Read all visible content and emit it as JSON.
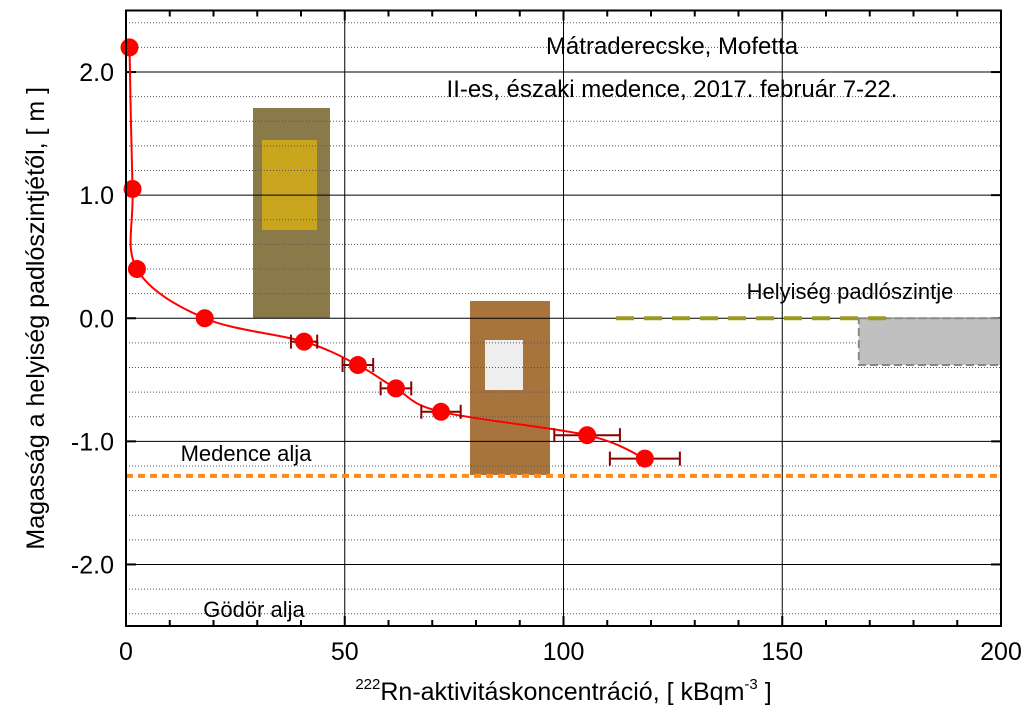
{
  "chart_data": {
    "type": "scatter",
    "title": "Mátraderecske, Mofetta",
    "subtitle": "II-es, északi medence, 2017. február 7-22.",
    "x_label": [
      "222",
      "Rn-aktivitáskoncentráció, [ kBqm",
      "-3",
      " ]"
    ],
    "y_label": "Magasság a helyiség padlószintjétől, [ m ]",
    "annotations": [
      "Helyiség padlószintje",
      "Medence alja",
      "Gödör alja"
    ],
    "xlim": [
      0,
      200
    ],
    "ylim": [
      -2.5,
      2.5
    ],
    "xticks": [
      0,
      50,
      100,
      150,
      200
    ],
    "yticks": [
      {
        "value": -2,
        "label": "-2.0"
      },
      {
        "value": -1,
        "label": "-1.0"
      },
      {
        "value": 0,
        "label": "0.0"
      },
      {
        "value": 1,
        "label": "1.0"
      },
      {
        "value": 2,
        "label": "2.0"
      }
    ],
    "x_minor_ticks": [
      10,
      20,
      30,
      40,
      60,
      70,
      80,
      90,
      110,
      120,
      130,
      140,
      160,
      170,
      180,
      190
    ],
    "y_minor_grid": [
      -2.4,
      -2.2,
      -1.8,
      -1.6,
      -1.4,
      -1.2,
      -0.8,
      -0.6,
      -0.4,
      -0.2,
      0.2,
      0.4,
      0.6,
      0.8,
      1.2,
      1.4,
      1.6,
      1.8,
      2.2,
      2.4
    ],
    "grid": true,
    "series": [
      {
        "color": "#ff0000",
        "error_color": "#8b0000",
        "x": [
          0.8,
          1.5,
          2.5,
          18,
          40.7,
          53,
          61.7,
          72,
          105.4,
          118.6
        ],
        "values": [
          2.2,
          1.05,
          0.4,
          0,
          -0.19,
          -0.38,
          -0.57,
          -0.76,
          -0.95,
          -1.14
        ],
        "xerr": [
          0.3,
          0.5,
          0.6,
          1,
          3,
          3.5,
          3.5,
          4.5,
          7.5,
          8
        ]
      }
    ],
    "reference_lines": [
      {
        "y": 0,
        "x": [
          112,
          175
        ],
        "color": "#9a9a20",
        "dash": "18 10"
      },
      {
        "y": -1.28,
        "x": [
          0,
          200
        ],
        "color": "#ff8c1a",
        "dash": "7 5"
      }
    ],
    "box": {
      "x": [
        167.5,
        200
      ],
      "y": [
        -0.38,
        0
      ],
      "color": "#c0c0c0"
    }
  }
}
